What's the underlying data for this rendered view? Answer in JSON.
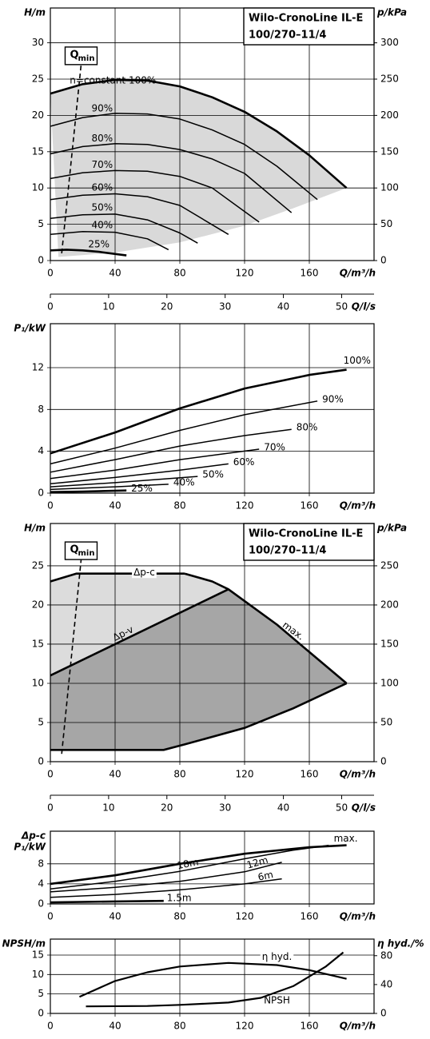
{
  "chart_data": [
    {
      "type": "line",
      "title": [
        "Wilo-CronoLine IL-E",
        "100/270–11/4"
      ],
      "xlabel": "Q/m³/h",
      "ylabel": [
        "H/m"
      ],
      "y2label": "p/kPa",
      "xlim": [
        0,
        200
      ],
      "xticks": [
        0,
        40,
        80,
        120,
        160
      ],
      "ylim": [
        0,
        34.8
      ],
      "yticks": [
        0,
        5,
        10,
        15,
        20,
        25,
        30
      ],
      "y2lim": [
        0,
        348
      ],
      "y2ticks": [
        0,
        50,
        100,
        150,
        200,
        250,
        300
      ],
      "grid": true,
      "color": "#000000",
      "area_colors": [
        "#d9d9d9"
      ],
      "series": [
        {
          "name": "n=constant 100%",
          "line_width": 2.6,
          "x": [
            0,
            20,
            40,
            60,
            80,
            100,
            120,
            140,
            160,
            183
          ],
          "values": [
            23,
            24.3,
            24.9,
            24.8,
            24,
            22.5,
            20.5,
            17.8,
            14.5,
            10
          ]
        },
        {
          "name": "90%",
          "line_width": 1.5,
          "x": [
            0,
            20,
            40,
            60,
            80,
            100,
            120,
            140,
            165
          ],
          "values": [
            18.5,
            19.7,
            20.3,
            20.2,
            19.5,
            18,
            16,
            13,
            8.4
          ]
        },
        {
          "name": "80%",
          "line_width": 1.5,
          "x": [
            0,
            20,
            40,
            60,
            80,
            100,
            120,
            149
          ],
          "values": [
            14.7,
            15.7,
            16.1,
            16,
            15.3,
            14,
            12,
            6.6
          ]
        },
        {
          "name": "70%",
          "line_width": 1.5,
          "x": [
            0,
            20,
            40,
            60,
            80,
            100,
            129
          ],
          "values": [
            11.3,
            12.1,
            12.4,
            12.3,
            11.6,
            10,
            5.3
          ]
        },
        {
          "name": "60%",
          "line_width": 1.5,
          "x": [
            0,
            20,
            40,
            60,
            80,
            110
          ],
          "values": [
            8.4,
            9,
            9.2,
            8.8,
            7.6,
            3.6
          ]
        },
        {
          "name": "50%",
          "line_width": 1.5,
          "x": [
            0,
            20,
            40,
            60,
            80,
            91
          ],
          "values": [
            5.8,
            6.3,
            6.4,
            5.6,
            3.8,
            2.4
          ]
        },
        {
          "name": "40%",
          "line_width": 1.5,
          "x": [
            0,
            20,
            40,
            60,
            73
          ],
          "values": [
            3.6,
            4,
            3.9,
            3,
            1.5
          ]
        },
        {
          "name": "25%",
          "line_width": 2.6,
          "x": [
            0,
            10,
            20,
            30,
            47
          ],
          "values": [
            1.4,
            1.5,
            1.4,
            1.2,
            0.7
          ]
        }
      ],
      "operating_range": {
        "x": [
          5,
          40,
          80,
          120,
          150,
          183
        ],
        "values": [
          0.5,
          1.1,
          2.5,
          4.8,
          7.2,
          10
        ]
      },
      "qmin": {
        "label": "Q",
        "sub": "min",
        "x": [
          7,
          19
        ],
        "values": [
          1,
          27
        ]
      }
    },
    {
      "type": "axis",
      "xlabel": "Q/l/s",
      "xlim": [
        0,
        55.56
      ],
      "xticks": [
        0,
        10,
        20,
        30,
        40,
        50
      ]
    },
    {
      "type": "line",
      "xlabel": "Q/m³/h",
      "ylabel": [
        "P₁/kW"
      ],
      "xlim": [
        0,
        200
      ],
      "xticks": [
        0,
        40,
        80,
        120,
        160
      ],
      "ylim": [
        0,
        16.2
      ],
      "yticks": [
        0,
        4,
        8,
        12
      ],
      "grid": true,
      "color": "#000000",
      "series": [
        {
          "name": "100%",
          "line_width": 2.6,
          "x": [
            0,
            40,
            80,
            120,
            160,
            183
          ],
          "values": [
            3.8,
            5.8,
            8.1,
            10,
            11.3,
            11.8
          ]
        },
        {
          "name": "90%",
          "line_width": 1.5,
          "x": [
            0,
            40,
            80,
            120,
            165
          ],
          "values": [
            2.8,
            4.3,
            6,
            7.5,
            8.8
          ]
        },
        {
          "name": "80%",
          "line_width": 1.5,
          "x": [
            0,
            40,
            80,
            120,
            149
          ],
          "values": [
            2,
            3.2,
            4.5,
            5.5,
            6.1
          ]
        },
        {
          "name": "70%",
          "line_width": 1.5,
          "x": [
            0,
            40,
            80,
            129
          ],
          "values": [
            1.4,
            2.2,
            3.2,
            4.2
          ]
        },
        {
          "name": "60%",
          "line_width": 1.5,
          "x": [
            0,
            40,
            80,
            110
          ],
          "values": [
            0.9,
            1.5,
            2.2,
            2.8
          ]
        },
        {
          "name": "50%",
          "line_width": 1.5,
          "x": [
            0,
            40,
            91
          ],
          "values": [
            0.6,
            1,
            1.6
          ]
        },
        {
          "name": "40%",
          "line_width": 1.5,
          "x": [
            0,
            40,
            73
          ],
          "values": [
            0.35,
            0.6,
            0.85
          ]
        },
        {
          "name": "25%",
          "line_width": 2.6,
          "x": [
            0,
            20,
            47
          ],
          "values": [
            0.1,
            0.15,
            0.25
          ]
        }
      ]
    },
    {
      "type": "control",
      "title": [
        "Wilo-CronoLine IL-E",
        "100/270–11/4"
      ],
      "xlabel": "Q/m³/h",
      "ylabel": [
        "H/m"
      ],
      "y2label": "p/kPa",
      "xlim": [
        0,
        200
      ],
      "xticks": [
        0,
        40,
        80,
        120,
        160
      ],
      "ylim": [
        0,
        30.4
      ],
      "yticks": [
        0,
        5,
        10,
        15,
        20,
        25
      ],
      "y2lim": [
        0,
        304
      ],
      "y2ticks": [
        0,
        50,
        100,
        150,
        200,
        250
      ],
      "grid": true,
      "color": "#000000",
      "area_colors": [
        "#dcdcdc",
        "#a6a6a6"
      ],
      "series": [
        {
          "name": "Δp-c",
          "line_width": 2.6,
          "x": [
            0,
            16,
            83
          ],
          "values": [
            23,
            24,
            24
          ]
        },
        {
          "name": "Δp-v",
          "line_width": 2.6,
          "x": [
            0,
            110
          ],
          "values": [
            11,
            22
          ]
        },
        {
          "name": "max.",
          "line_width": 2.6,
          "x": [
            83,
            100,
            110,
            140,
            160,
            183
          ],
          "values": [
            24,
            23,
            22,
            17.5,
            14,
            10
          ]
        }
      ],
      "min_curve": {
        "x": [
          0,
          70,
          83,
          120,
          150,
          183
        ],
        "values": [
          1.5,
          1.5,
          2.2,
          4.3,
          6.8,
          10
        ]
      },
      "qmin": {
        "label": "Q",
        "sub": "min",
        "x": [
          7,
          19
        ],
        "values": [
          1,
          25.8
        ]
      }
    },
    {
      "type": "axis",
      "xlabel": "Q/l/s",
      "xlim": [
        0,
        55.56
      ],
      "xticks": [
        0,
        10,
        20,
        30,
        40,
        50
      ]
    },
    {
      "type": "line",
      "xlabel": "Q/m³/h",
      "ylabel": [
        "Δp-c",
        "P₁/kW"
      ],
      "xlim": [
        0,
        200
      ],
      "xticks": [
        0,
        40,
        80,
        120,
        160
      ],
      "ylim": [
        0,
        14.5
      ],
      "yticks": [
        0,
        4,
        8
      ],
      "grid": true,
      "color": "#000000",
      "series": [
        {
          "name": "max.",
          "line_width": 2.6,
          "x": [
            0,
            40,
            80,
            120,
            160,
            183
          ],
          "values": [
            4,
            5.7,
            8,
            10,
            11.3,
            11.7
          ]
        },
        {
          "name": "18m",
          "line_width": 1.5,
          "x": [
            0,
            40,
            80,
            120,
            150,
            172
          ],
          "values": [
            3,
            4.5,
            6.5,
            9,
            10.7,
            11.7
          ]
        },
        {
          "name": "12m",
          "line_width": 1.5,
          "x": [
            0,
            40,
            80,
            120,
            143
          ],
          "values": [
            2.4,
            3.3,
            4.5,
            6.4,
            8.3
          ]
        },
        {
          "name": "6m",
          "line_width": 1.5,
          "x": [
            0,
            40,
            80,
            120,
            143
          ],
          "values": [
            1.3,
            1.9,
            2.8,
            4,
            5
          ]
        },
        {
          "name": "1.5m",
          "line_width": 2.6,
          "x": [
            0,
            40,
            70
          ],
          "values": [
            0.3,
            0.5,
            0.6
          ]
        }
      ]
    },
    {
      "type": "line",
      "xlabel": "Q/m³/h",
      "ylabel": [
        "NPSH/m"
      ],
      "y2label": "η hyd./%",
      "xlim": [
        0,
        200
      ],
      "xticks": [
        0,
        40,
        80,
        120,
        160
      ],
      "ylim": [
        0,
        19.1
      ],
      "yticks": [
        0,
        5,
        10,
        15
      ],
      "y2lim": [
        0,
        103
      ],
      "y2ticks": [
        0,
        40,
        80
      ],
      "grid": true,
      "color": "#000000",
      "series": [
        {
          "name": "η hyd.",
          "axis": "y2",
          "line_width": 2.2,
          "x": [
            18,
            40,
            60,
            80,
            110,
            140,
            160,
            183
          ],
          "values": [
            23,
            45,
            57,
            65,
            70,
            67,
            60,
            48
          ]
        },
        {
          "name": "NPSH",
          "line_width": 2.2,
          "x": [
            22,
            60,
            80,
            110,
            130,
            150,
            170,
            181
          ],
          "values": [
            1.8,
            1.9,
            2.2,
            2.8,
            4,
            7,
            12,
            15.7
          ]
        }
      ]
    }
  ]
}
